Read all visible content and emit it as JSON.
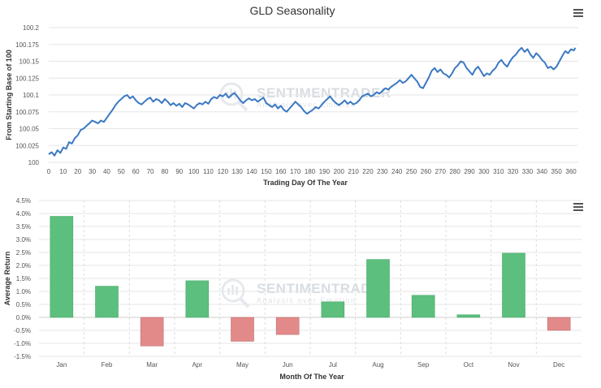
{
  "chart_data": [
    {
      "type": "line",
      "title": "GLD Seasonality",
      "xlabel": "Trading Day Of The Year",
      "ylabel": "From Starting Base of 100",
      "xlim": [
        0,
        365
      ],
      "ylim": [
        100,
        100.2
      ],
      "x_ticks": [
        "0",
        "10",
        "20",
        "30",
        "40",
        "50",
        "60",
        "70",
        "80",
        "90",
        "100",
        "110",
        "120",
        "130",
        "140",
        "150",
        "160",
        "170",
        "180",
        "190",
        "200",
        "210",
        "220",
        "230",
        "240",
        "250",
        "260",
        "270",
        "280",
        "290",
        "300",
        "310",
        "320",
        "330",
        "340",
        "350",
        "360"
      ],
      "y_ticks": [
        "100",
        "100.025",
        "100.05",
        "100.075",
        "100.1",
        "100.125",
        "100.15",
        "100.175",
        "100.2"
      ],
      "series": [
        {
          "color": "#3a78c4",
          "points": [
            [
              0,
              100.012
            ],
            [
              2,
              100.015
            ],
            [
              4,
              100.01
            ],
            [
              6,
              100.018
            ],
            [
              8,
              100.014
            ],
            [
              10,
              100.022
            ],
            [
              12,
              100.02
            ],
            [
              14,
              100.03
            ],
            [
              16,
              100.028
            ],
            [
              18,
              100.036
            ],
            [
              20,
              100.04
            ],
            [
              22,
              100.048
            ],
            [
              24,
              100.05
            ],
            [
              26,
              100.054
            ],
            [
              28,
              100.058
            ],
            [
              30,
              100.062
            ],
            [
              32,
              100.06
            ],
            [
              34,
              100.058
            ],
            [
              36,
              100.062
            ],
            [
              38,
              100.06
            ],
            [
              40,
              100.066
            ],
            [
              42,
              100.072
            ],
            [
              44,
              100.078
            ],
            [
              46,
              100.085
            ],
            [
              48,
              100.09
            ],
            [
              50,
              100.094
            ],
            [
              52,
              100.098
            ],
            [
              54,
              100.1
            ],
            [
              56,
              100.095
            ],
            [
              58,
              100.098
            ],
            [
              60,
              100.092
            ],
            [
              62,
              100.088
            ],
            [
              64,
              100.086
            ],
            [
              66,
              100.09
            ],
            [
              68,
              100.094
            ],
            [
              70,
              100.096
            ],
            [
              72,
              100.09
            ],
            [
              74,
              100.094
            ],
            [
              76,
              100.092
            ],
            [
              78,
              100.088
            ],
            [
              80,
              100.094
            ],
            [
              82,
              100.09
            ],
            [
              84,
              100.085
            ],
            [
              86,
              100.088
            ],
            [
              88,
              100.084
            ],
            [
              90,
              100.087
            ],
            [
              92,
              100.082
            ],
            [
              94,
              100.088
            ],
            [
              96,
              100.086
            ],
            [
              98,
              100.083
            ],
            [
              100,
              100.08
            ],
            [
              102,
              100.085
            ],
            [
              104,
              100.088
            ],
            [
              106,
              100.086
            ],
            [
              108,
              100.09
            ],
            [
              110,
              100.087
            ],
            [
              112,
              100.094
            ],
            [
              114,
              100.097
            ],
            [
              116,
              100.095
            ],
            [
              118,
              100.1
            ],
            [
              120,
              100.098
            ],
            [
              122,
              100.102
            ],
            [
              124,
              100.096
            ],
            [
              126,
              100.1
            ],
            [
              128,
              100.103
            ],
            [
              130,
              100.098
            ],
            [
              132,
              100.092
            ],
            [
              134,
              100.088
            ],
            [
              136,
              100.092
            ],
            [
              138,
              100.095
            ],
            [
              140,
              100.092
            ],
            [
              142,
              100.094
            ],
            [
              144,
              100.09
            ],
            [
              146,
              100.093
            ],
            [
              148,
              100.096
            ],
            [
              150,
              100.088
            ],
            [
              152,
              100.085
            ],
            [
              154,
              100.082
            ],
            [
              156,
              100.086
            ],
            [
              158,
              100.08
            ],
            [
              160,
              100.084
            ],
            [
              162,
              100.078
            ],
            [
              164,
              100.075
            ],
            [
              166,
              100.08
            ],
            [
              168,
              100.085
            ],
            [
              170,
              100.09
            ],
            [
              172,
              100.086
            ],
            [
              174,
              100.082
            ],
            [
              176,
              100.076
            ],
            [
              178,
              100.072
            ],
            [
              180,
              100.075
            ],
            [
              182,
              100.078
            ],
            [
              184,
              100.082
            ],
            [
              186,
              100.08
            ],
            [
              188,
              100.085
            ],
            [
              190,
              100.09
            ],
            [
              192,
              100.094
            ],
            [
              194,
              100.098
            ],
            [
              196,
              100.092
            ],
            [
              198,
              100.088
            ],
            [
              200,
              100.085
            ],
            [
              202,
              100.088
            ],
            [
              204,
              100.092
            ],
            [
              206,
              100.087
            ],
            [
              208,
              100.09
            ],
            [
              210,
              100.086
            ],
            [
              212,
              100.088
            ],
            [
              214,
              100.092
            ],
            [
              216,
              100.098
            ],
            [
              218,
              100.1
            ],
            [
              220,
              100.102
            ],
            [
              222,
              100.098
            ],
            [
              224,
              100.1
            ],
            [
              226,
              100.104
            ],
            [
              228,
              100.102
            ],
            [
              230,
              100.106
            ],
            [
              232,
              100.11
            ],
            [
              234,
              100.108
            ],
            [
              236,
              100.112
            ],
            [
              238,
              100.115
            ],
            [
              240,
              100.118
            ],
            [
              242,
              100.122
            ],
            [
              244,
              100.118
            ],
            [
              246,
              100.12
            ],
            [
              248,
              100.125
            ],
            [
              250,
              100.13
            ],
            [
              252,
              100.125
            ],
            [
              254,
              100.12
            ],
            [
              256,
              100.112
            ],
            [
              258,
              100.11
            ],
            [
              260,
              100.118
            ],
            [
              262,
              100.126
            ],
            [
              264,
              100.136
            ],
            [
              266,
              100.14
            ],
            [
              268,
              100.134
            ],
            [
              270,
              100.138
            ],
            [
              272,
              100.132
            ],
            [
              274,
              100.13
            ],
            [
              276,
              100.126
            ],
            [
              278,
              100.132
            ],
            [
              280,
              100.14
            ],
            [
              282,
              100.144
            ],
            [
              284,
              100.15
            ],
            [
              286,
              100.148
            ],
            [
              288,
              100.14
            ],
            [
              290,
              100.135
            ],
            [
              292,
              100.13
            ],
            [
              294,
              100.138
            ],
            [
              296,
              100.142
            ],
            [
              298,
              100.135
            ],
            [
              300,
              100.128
            ],
            [
              302,
              100.132
            ],
            [
              304,
              100.13
            ],
            [
              306,
              100.136
            ],
            [
              308,
              100.14
            ],
            [
              310,
              100.148
            ],
            [
              312,
              100.152
            ],
            [
              314,
              100.146
            ],
            [
              316,
              100.142
            ],
            [
              318,
              100.15
            ],
            [
              320,
              100.156
            ],
            [
              322,
              100.16
            ],
            [
              324,
              100.166
            ],
            [
              326,
              100.17
            ],
            [
              328,
              100.164
            ],
            [
              330,
              100.168
            ],
            [
              332,
              100.16
            ],
            [
              334,
              100.155
            ],
            [
              336,
              100.162
            ],
            [
              338,
              100.158
            ],
            [
              340,
              100.152
            ],
            [
              342,
              100.148
            ],
            [
              344,
              100.14
            ],
            [
              346,
              100.142
            ],
            [
              348,
              100.138
            ],
            [
              350,
              100.142
            ],
            [
              352,
              100.15
            ],
            [
              354,
              100.158
            ],
            [
              356,
              100.165
            ],
            [
              358,
              100.162
            ],
            [
              360,
              100.168
            ],
            [
              362,
              100.166
            ],
            [
              363,
              100.17
            ]
          ]
        }
      ]
    },
    {
      "type": "bar",
      "xlabel": "Month Of The Year",
      "ylabel": "Average Return",
      "ylim": [
        -0.015,
        0.045
      ],
      "y_ticks": [
        "-1.5%",
        "-1.0%",
        "-0.5%",
        "0.0%",
        "0.5%",
        "1.0%",
        "1.5%",
        "2.0%",
        "2.5%",
        "3.0%",
        "3.5%",
        "4.0%",
        "4.5%"
      ],
      "categories": [
        "Jan",
        "Feb",
        "Mar",
        "Apr",
        "May",
        "Jun",
        "Jul",
        "Aug",
        "Sep",
        "Oct",
        "Nov",
        "Dec"
      ],
      "values": [
        0.0389,
        0.012,
        -0.011,
        0.0141,
        -0.0092,
        -0.0066,
        0.006,
        0.0223,
        0.0085,
        0.001,
        0.0247,
        -0.005
      ],
      "positive_color": "#5cbf7d",
      "negative_color": "#e28a8a"
    }
  ],
  "watermark": {
    "brand": "SENTIMENTRADER",
    "tagline": "Analysis over Emotion"
  },
  "icons": [
    "menu-icon",
    "menu-icon"
  ]
}
